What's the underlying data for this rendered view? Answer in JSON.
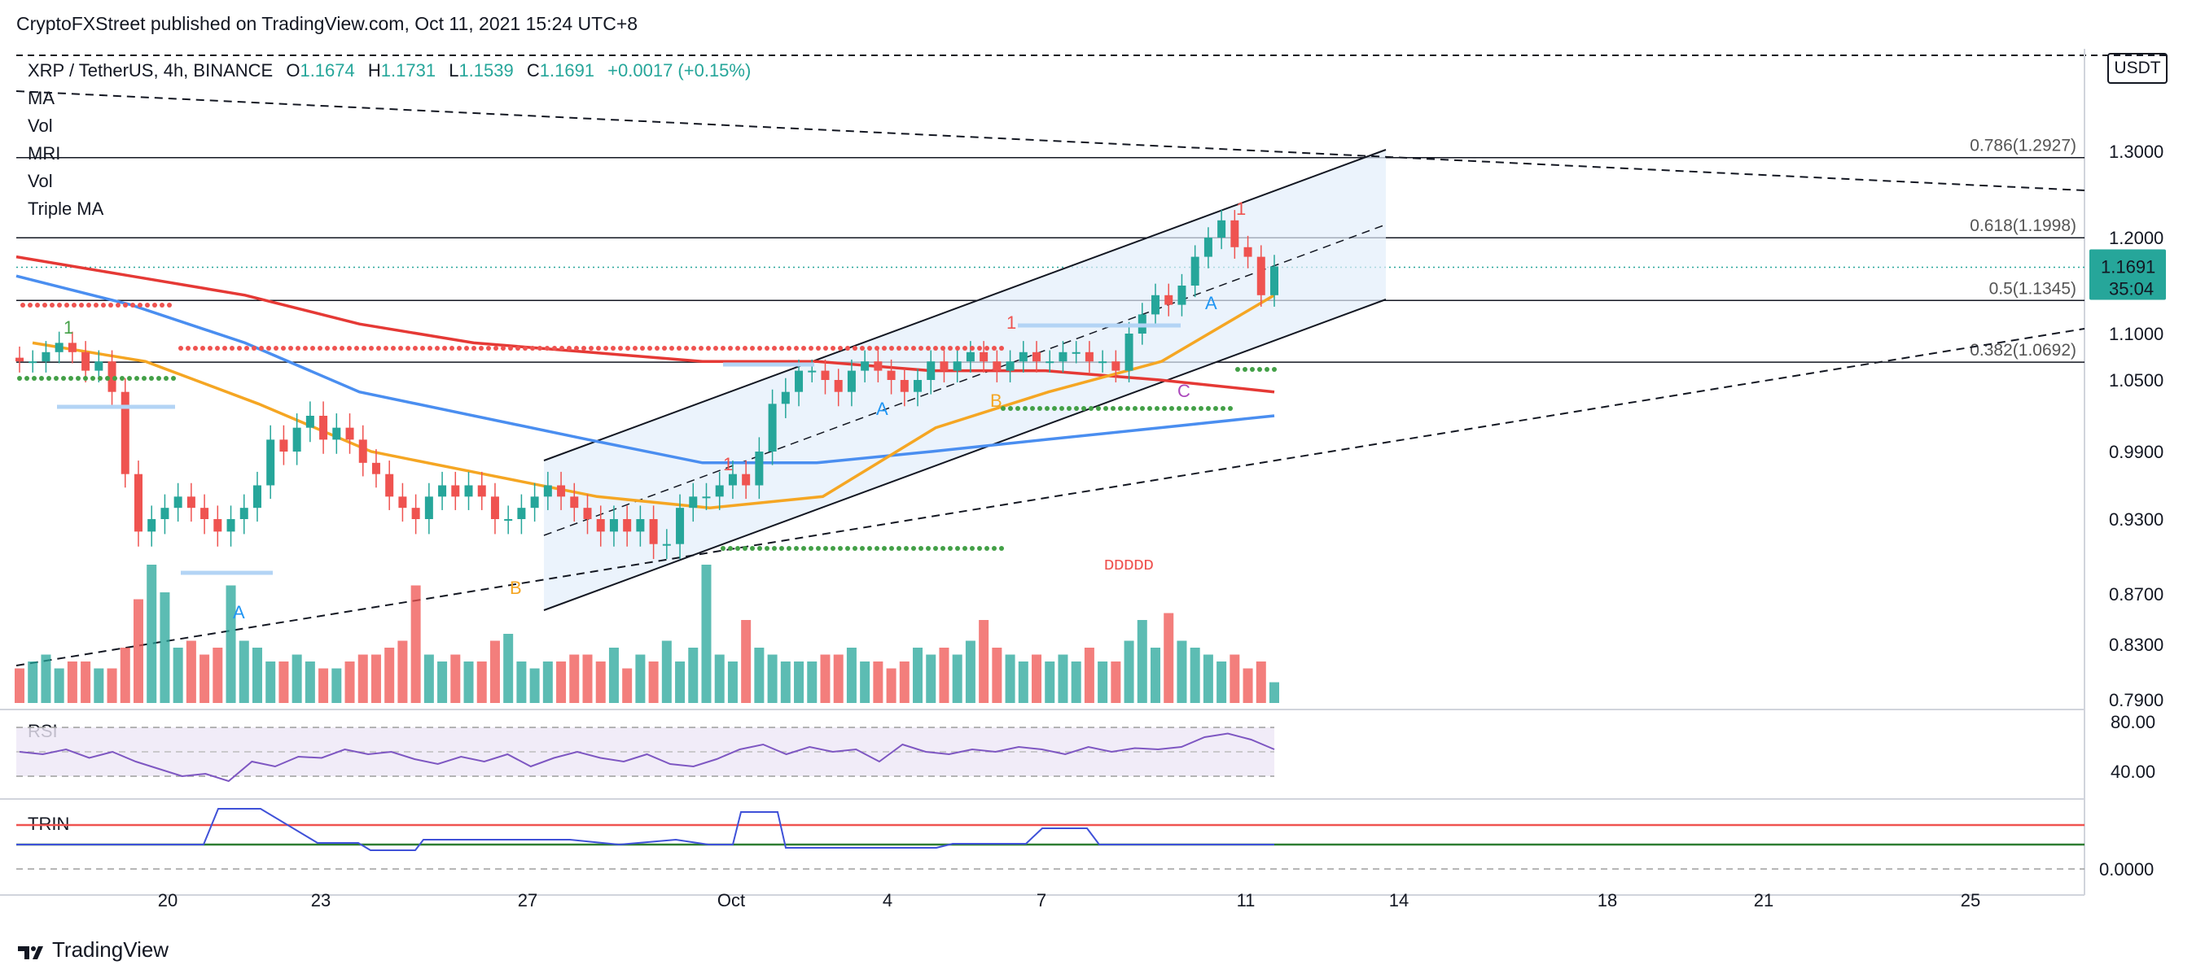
{
  "header": {
    "publisher": "CryptoFXStreet published on TradingView.com, Oct 11, 2021 15:24 UTC+8"
  },
  "legend": {
    "symbol": "XRP / TetherUS, 4h, BINANCE",
    "o_label": "O",
    "o": "1.1674",
    "h_label": "H",
    "h": "1.1731",
    "l_label": "L",
    "l": "1.1539",
    "c_label": "C",
    "c": "1.1691",
    "change": "+0.0017 (+0.15%)",
    "indicators": [
      "MA",
      "Vol",
      "MRI",
      "Vol",
      "Triple MA"
    ]
  },
  "price_axis": {
    "currency": "USDT",
    "ticks": [
      "1.3000",
      "1.2000",
      "1.1000",
      "1.0500",
      "0.9900",
      "0.9300",
      "0.8700",
      "0.8300",
      "0.7900"
    ],
    "last_price": "1.1691",
    "countdown": "35:04",
    "last_price_color": "#26a69a"
  },
  "fib_levels": [
    {
      "label": "0.786(1.2927)",
      "value": 1.2927
    },
    {
      "label": "0.618(1.1998)",
      "value": 1.1998
    },
    {
      "label": "0.5(1.1345)",
      "value": 1.1345
    },
    {
      "label": "0.382(1.0692)",
      "value": 1.0692
    }
  ],
  "time_axis": {
    "ticks": [
      "20",
      "23",
      "27",
      "Oct",
      "4",
      "7",
      "11",
      "14",
      "18",
      "21",
      "25"
    ]
  },
  "rsi": {
    "title": "RSI",
    "ticks": [
      "80.00",
      "40.00"
    ]
  },
  "trin": {
    "title": "TRIN",
    "ticks": [
      "0.0000"
    ]
  },
  "annotations": {
    "wave_a1": "A",
    "wave_b1": "B",
    "wave_a2": "A",
    "wave_b2": "B",
    "wave_c": "C",
    "wave_a3": "A",
    "count_1": "1",
    "count_1b": "1",
    "count_1c": "1",
    "count_1d": "1",
    "red_label": "ᴅᴅᴅᴅᴅ"
  },
  "footer": {
    "brand": "TradingView"
  },
  "colors": {
    "up": "#26a69a",
    "down": "#ef5350",
    "ma_red": "#e53935",
    "ma_blue": "#4a8ef0",
    "ma_orange": "#f5a623",
    "rsi_line": "#7e57c2",
    "trin_line": "#3f51d8"
  },
  "chart_data": {
    "type": "candlestick",
    "title": "XRP / TetherUS, 4h, BINANCE",
    "ylim": [
      0.79,
      1.31
    ],
    "xlabel": "",
    "ylabel": "",
    "close_series": [
      1.07,
      1.07,
      1.08,
      1.09,
      1.08,
      1.06,
      1.07,
      1.04,
      0.97,
      0.92,
      0.93,
      0.94,
      0.95,
      0.94,
      0.93,
      0.92,
      0.93,
      0.94,
      0.96,
      1.0,
      0.99,
      1.01,
      1.02,
      1.0,
      1.01,
      1.0,
      0.98,
      0.97,
      0.95,
      0.94,
      0.93,
      0.95,
      0.96,
      0.95,
      0.96,
      0.95,
      0.93,
      0.93,
      0.94,
      0.95,
      0.96,
      0.95,
      0.94,
      0.93,
      0.92,
      0.93,
      0.92,
      0.93,
      0.91,
      0.91,
      0.94,
      0.95,
      0.95,
      0.96,
      0.97,
      0.96,
      0.99,
      1.03,
      1.04,
      1.06,
      1.06,
      1.05,
      1.04,
      1.06,
      1.07,
      1.06,
      1.05,
      1.04,
      1.05,
      1.07,
      1.06,
      1.07,
      1.08,
      1.07,
      1.06,
      1.07,
      1.08,
      1.07,
      1.07,
      1.08,
      1.08,
      1.07,
      1.07,
      1.06,
      1.1,
      1.12,
      1.14,
      1.13,
      1.15,
      1.18,
      1.2,
      1.22,
      1.19,
      1.18,
      1.14,
      1.17
    ],
    "volume": [
      5,
      6,
      7,
      5,
      6,
      6,
      5,
      5,
      8,
      15,
      20,
      16,
      8,
      9,
      7,
      8,
      17,
      9,
      8,
      6,
      6,
      7,
      6,
      5,
      5,
      6,
      7,
      7,
      8,
      9,
      17,
      7,
      6,
      7,
      6,
      6,
      9,
      10,
      6,
      5,
      6,
      6,
      7,
      7,
      6,
      8,
      5,
      7,
      6,
      9,
      6,
      8,
      20,
      7,
      6,
      12,
      8,
      7,
      6,
      6,
      6,
      7,
      7,
      8,
      6,
      6,
      5,
      6,
      8,
      7,
      8,
      7,
      9,
      12,
      8,
      7,
      6,
      7,
      6,
      7,
      6,
      8,
      6,
      6,
      9,
      12,
      8,
      13,
      9,
      8,
      7,
      6,
      7,
      5,
      6,
      3
    ],
    "series": [
      {
        "name": "MA",
        "color": "#e53935",
        "values": [
          1.18,
          1.16,
          1.14,
          1.11,
          1.09,
          1.08,
          1.07,
          1.07,
          1.06,
          1.06,
          1.05,
          1.04
        ]
      },
      {
        "name": "MA",
        "color": "#4a8ef0",
        "values": [
          1.16,
          1.13,
          1.09,
          1.04,
          1.02,
          1.0,
          0.98,
          0.98,
          0.99,
          1.0,
          1.01,
          1.02
        ]
      },
      {
        "name": "Triple MA",
        "color": "#f5a623",
        "values": [
          1.09,
          1.07,
          1.03,
          0.99,
          0.97,
          0.95,
          0.94,
          0.95,
          1.01,
          1.04,
          1.07,
          1.14
        ]
      }
    ],
    "levels": [
      1.2927,
      1.1998,
      1.1345,
      1.0692
    ],
    "rsi_range": [
      40,
      80
    ]
  }
}
